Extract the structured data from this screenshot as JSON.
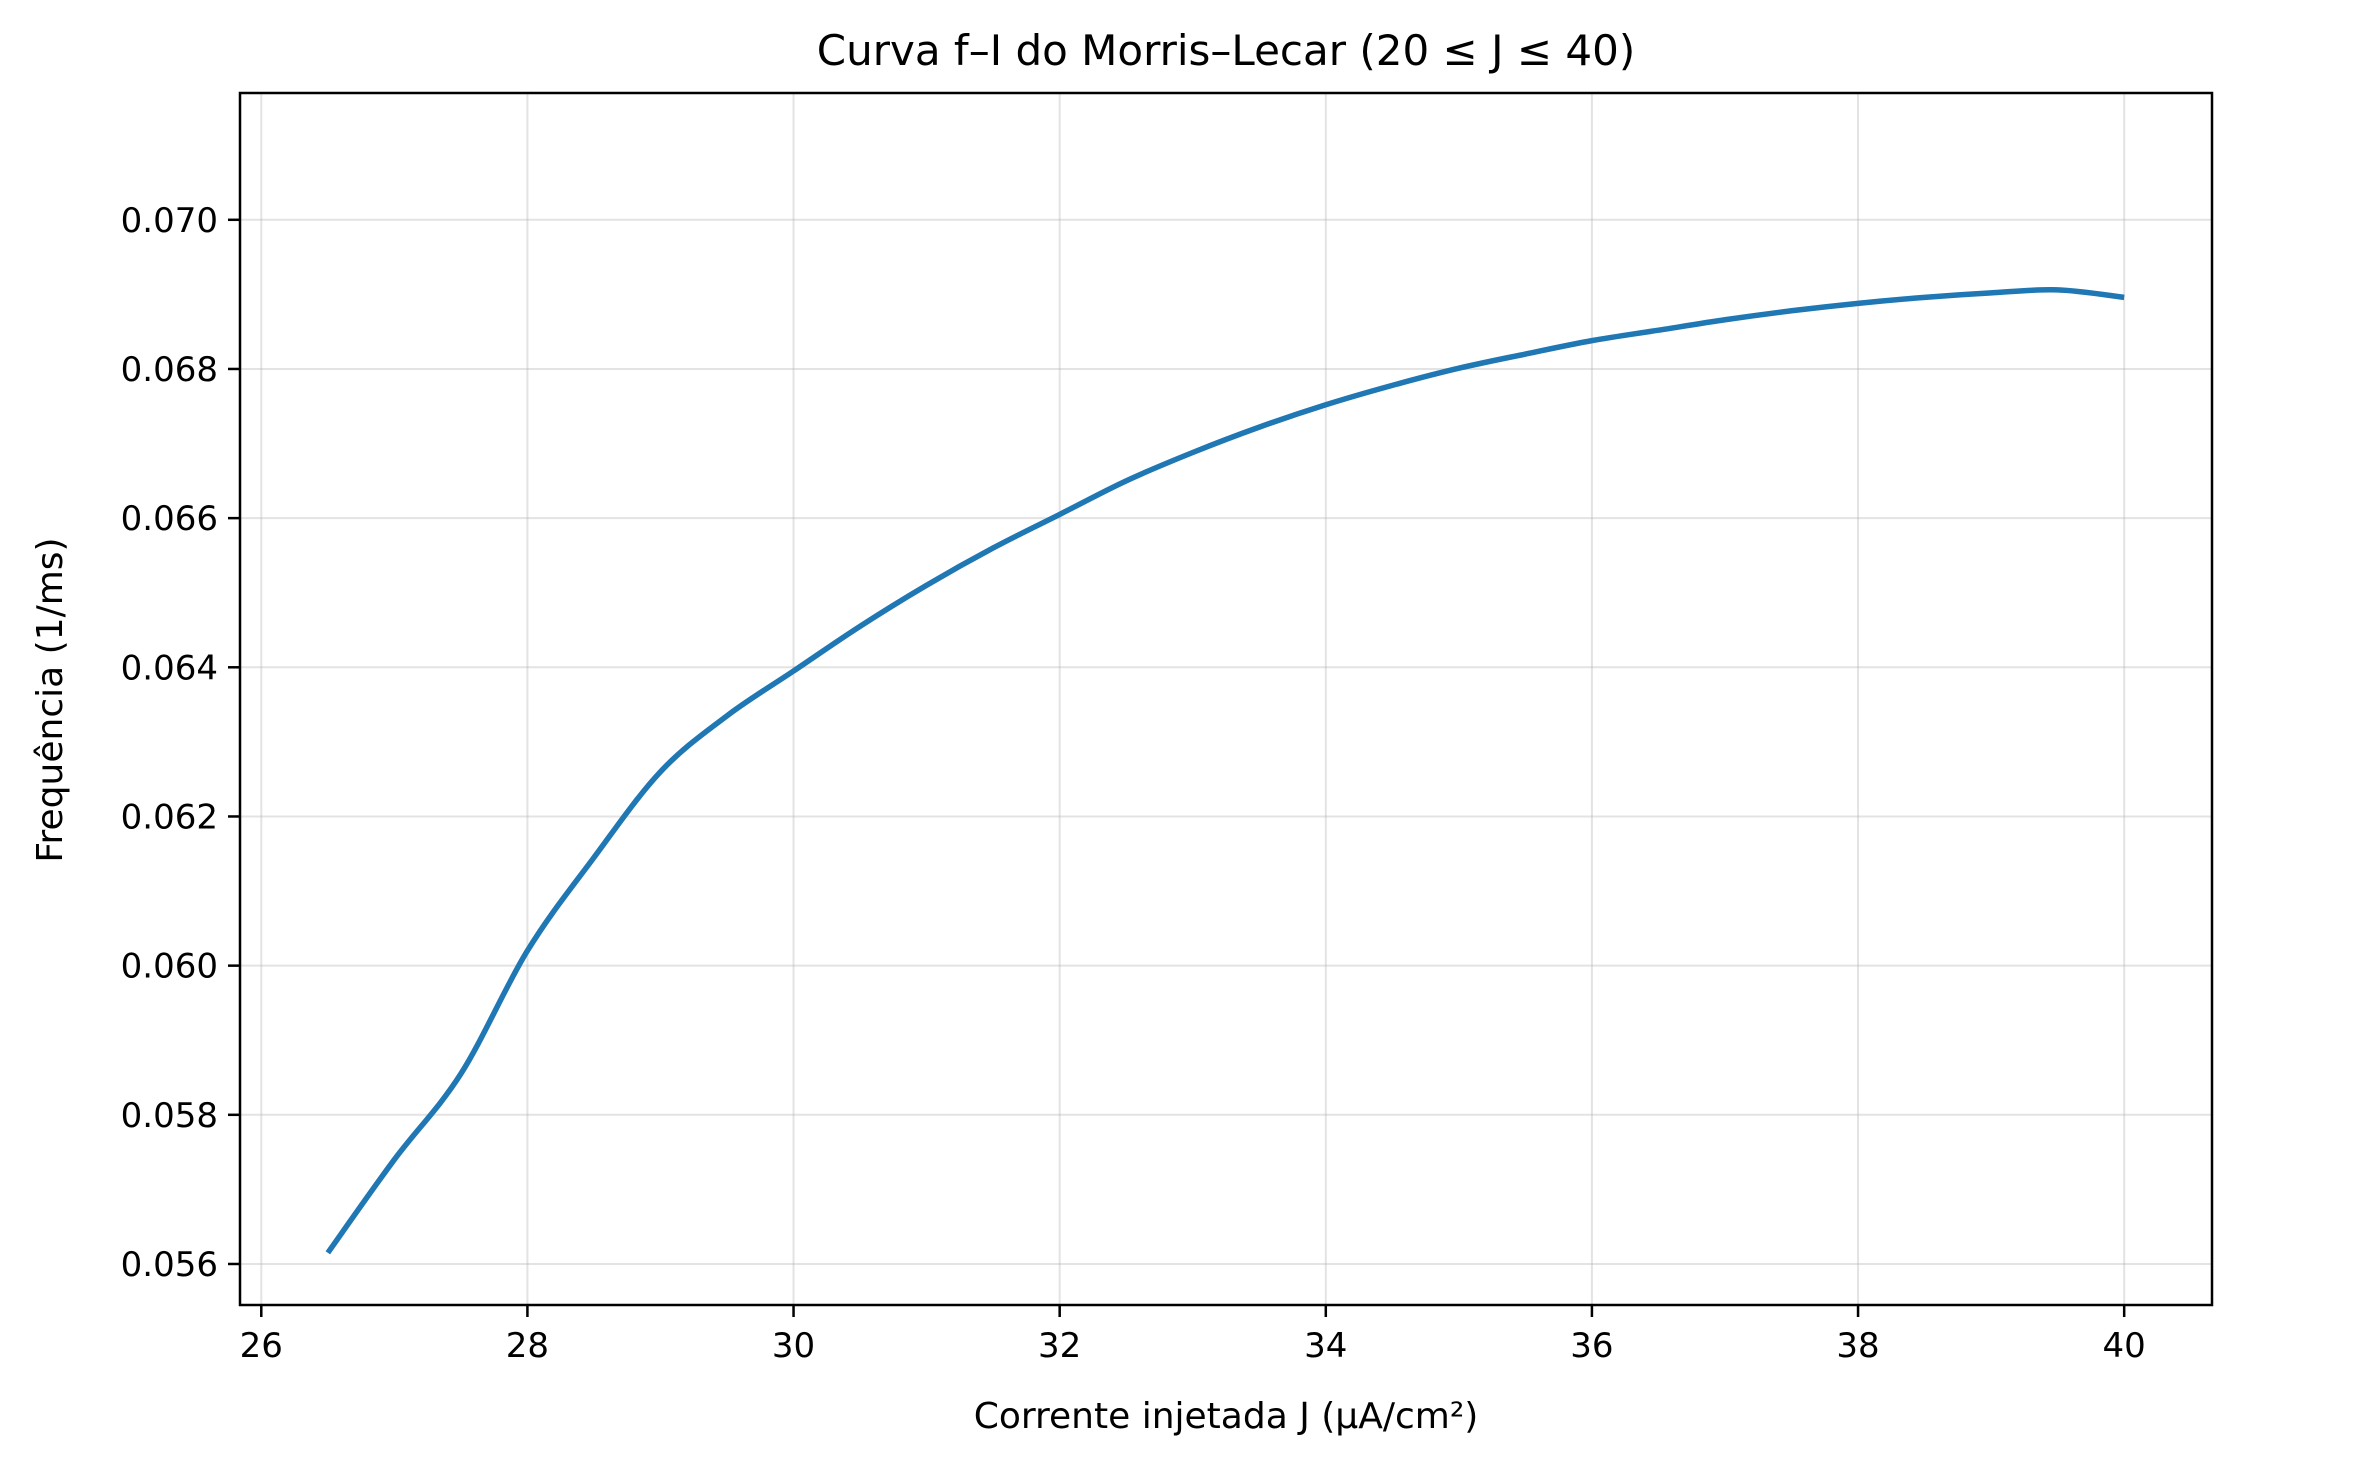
{
  "chart_data": {
    "type": "line",
    "title": "Curva f–I do Morris–Lecar (20 ≤ J ≤ 40)",
    "xlabel": "Corrente injetada J (μA/cm²)",
    "ylabel": "Frequência (1/ms)",
    "xlim": [
      25.84,
      40.66
    ],
    "ylim": [
      0.05545,
      0.0717
    ],
    "xticks": [
      26,
      28,
      30,
      32,
      34,
      36,
      38,
      40
    ],
    "xtick_labels": [
      "26",
      "28",
      "30",
      "32",
      "34",
      "36",
      "38",
      "40"
    ],
    "yticks": [
      0.056,
      0.058,
      0.06,
      0.062,
      0.064,
      0.066,
      0.068,
      0.07
    ],
    "ytick_labels": [
      "0.056",
      "0.058",
      "0.060",
      "0.062",
      "0.064",
      "0.066",
      "0.068",
      "0.070"
    ],
    "grid": true,
    "series": [
      {
        "color": "#1f77b4",
        "x": [
          26.5,
          27.0,
          27.5,
          28.0,
          28.5,
          29.0,
          29.5,
          30.0,
          30.5,
          31.0,
          31.5,
          32.0,
          32.5,
          33.0,
          33.5,
          34.0,
          34.5,
          35.0,
          35.5,
          36.0,
          36.5,
          37.0,
          37.5,
          38.0,
          38.5,
          39.0,
          39.5,
          40.0
        ],
        "y": [
          0.05615,
          0.0574,
          0.05855,
          0.0602,
          0.06145,
          0.0626,
          0.06335,
          0.06395,
          0.06455,
          0.0651,
          0.0656,
          0.06605,
          0.0665,
          0.06688,
          0.06722,
          0.06752,
          0.06778,
          0.06801,
          0.0682,
          0.06838,
          0.06852,
          0.06866,
          0.06878,
          0.06888,
          0.06896,
          0.06902,
          0.06906,
          0.06896
        ]
      }
    ]
  }
}
